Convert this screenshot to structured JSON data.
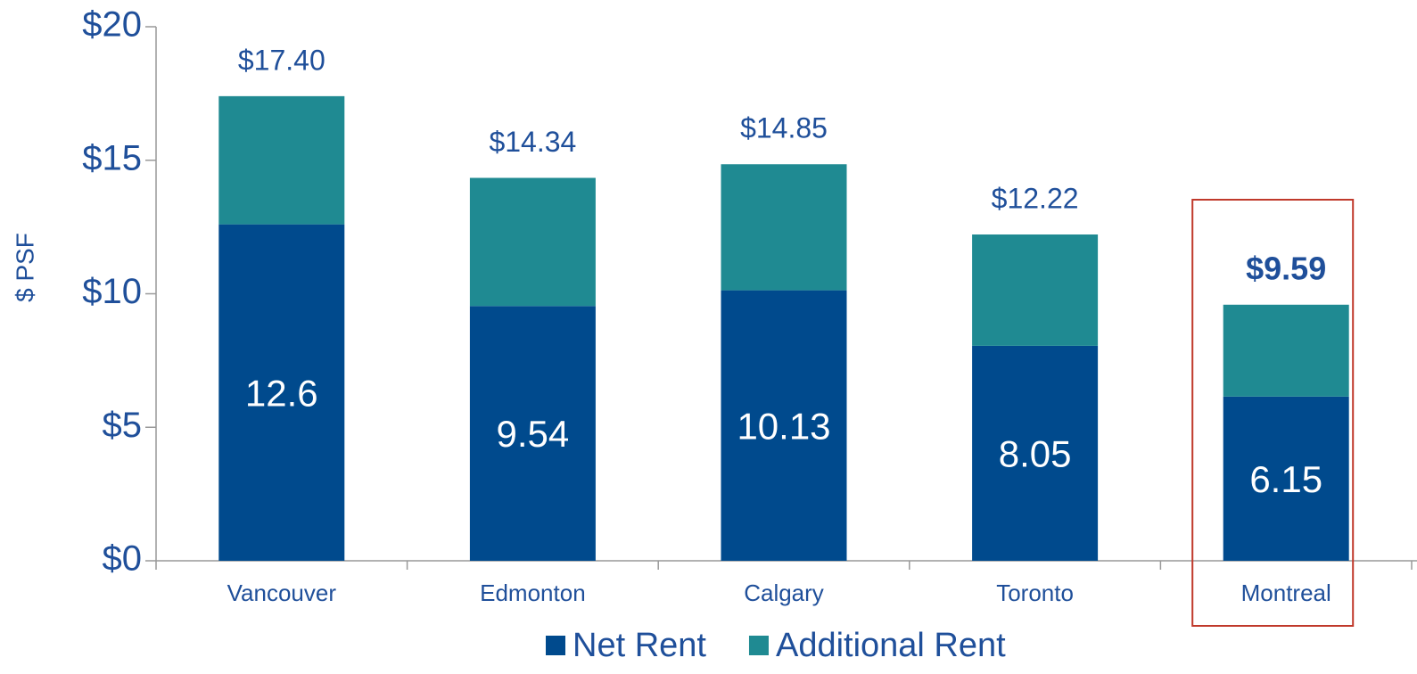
{
  "chart_data": {
    "type": "stacked_bar",
    "y_label": "$ PSF",
    "categories": [
      "Vancouver",
      "Edmonton",
      "Calgary",
      "Toronto",
      "Montreal"
    ],
    "series": [
      {
        "name": "Net Rent",
        "color": "#004a8d",
        "values": [
          12.6,
          9.54,
          10.13,
          8.05,
          6.15
        ]
      },
      {
        "name": "Additional Rent",
        "color": "#1f8a92",
        "values": [
          4.8,
          4.8,
          4.72,
          4.17,
          3.44
        ]
      }
    ],
    "totals": [
      17.4,
      14.34,
      14.85,
      12.22,
      9.59
    ],
    "total_labels": [
      "$17.40",
      "$14.34",
      "$14.85",
      "$12.22",
      "$9.59"
    ],
    "ylim": [
      0,
      20
    ],
    "yticks": [
      {
        "value": 0,
        "label": "$0"
      },
      {
        "value": 5,
        "label": "$5"
      },
      {
        "value": 10,
        "label": "$10"
      },
      {
        "value": 15,
        "label": "$15"
      },
      {
        "value": 20,
        "label": "$20"
      }
    ],
    "highlight": "Montreal",
    "legend": "bottom"
  }
}
